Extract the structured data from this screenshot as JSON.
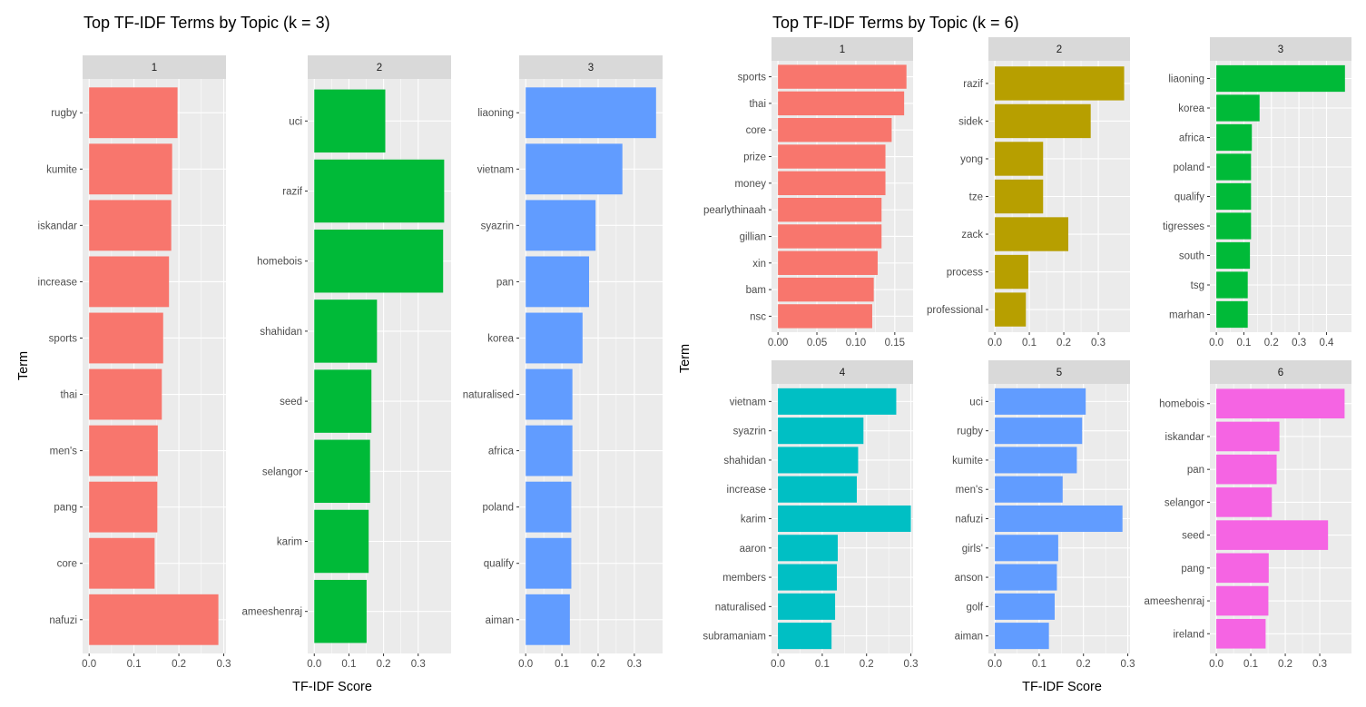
{
  "chart_data": [
    {
      "type": "bar",
      "orientation": "horizontal",
      "title": "Top TF-IDF Terms by Topic (k = 3)",
      "xlabel": "TF-IDF Score",
      "ylabel": "Term",
      "panels": [
        {
          "strip": "1",
          "color": "#F8766D",
          "xlim": [
            -0.0145,
            0.305
          ],
          "ticks": [
            0.0,
            0.1,
            0.2,
            0.3
          ],
          "tick_labels": [
            "0.0",
            "0.1",
            "0.2",
            "0.3"
          ],
          "categories": [
            "rugby",
            "kumite",
            "iskandar",
            "increase",
            "sports",
            "thai",
            "men's",
            "pang",
            "core",
            "nafuzi"
          ],
          "values": [
            0.197,
            0.185,
            0.183,
            0.178,
            0.165,
            0.162,
            0.153,
            0.152,
            0.146,
            0.288
          ]
        },
        {
          "strip": "2",
          "color": "#00BA38",
          "xlim": [
            -0.019,
            0.395
          ],
          "ticks": [
            0.0,
            0.1,
            0.2,
            0.3
          ],
          "tick_labels": [
            "0.0",
            "0.1",
            "0.2",
            "0.3"
          ],
          "categories": [
            "uci",
            "razif",
            "homebois",
            "shahidan",
            "seed",
            "selangor",
            "karim",
            "ameeshenraj"
          ],
          "values": [
            0.205,
            0.375,
            0.372,
            0.181,
            0.165,
            0.161,
            0.157,
            0.151
          ]
        },
        {
          "strip": "3",
          "color": "#619CFF",
          "xlim": [
            -0.018,
            0.378
          ],
          "ticks": [
            0.0,
            0.1,
            0.2,
            0.3
          ],
          "tick_labels": [
            "0.0",
            "0.1",
            "0.2",
            "0.3"
          ],
          "categories": [
            "liaoning",
            "vietnam",
            "syazrin",
            "pan",
            "korea",
            "naturalised",
            "africa",
            "poland",
            "qualify",
            "aiman"
          ],
          "values": [
            0.36,
            0.267,
            0.193,
            0.175,
            0.157,
            0.129,
            0.129,
            0.126,
            0.126,
            0.122
          ]
        }
      ]
    },
    {
      "type": "bar",
      "orientation": "horizontal",
      "title": "Top TF-IDF Terms by Topic (k = 6)",
      "xlabel": "TF-IDF Score",
      "ylabel": "Term",
      "panels": [
        {
          "strip": "1",
          "color": "#F8766D",
          "xlim": [
            -0.0083,
            0.1735
          ],
          "ticks": [
            0.0,
            0.05,
            0.1,
            0.15
          ],
          "tick_labels": [
            "0.00",
            "0.05",
            "0.10",
            "0.15"
          ],
          "categories": [
            "sports",
            "thai",
            "core",
            "prize",
            "money",
            "pearlythinaah",
            "gillian",
            "xin",
            "bam",
            "nsc"
          ],
          "values": [
            0.165,
            0.162,
            0.146,
            0.138,
            0.138,
            0.133,
            0.133,
            0.128,
            0.123,
            0.121
          ]
        },
        {
          "strip": "2",
          "color": "#B79F00",
          "xlim": [
            -0.0186,
            0.392
          ],
          "ticks": [
            0.0,
            0.1,
            0.2,
            0.3
          ],
          "tick_labels": [
            "0.0",
            "0.1",
            "0.2",
            "0.3"
          ],
          "categories": [
            "razif",
            "sidek",
            "yong",
            "tze",
            "zack",
            "process",
            "professional"
          ],
          "values": [
            0.375,
            0.278,
            0.14,
            0.14,
            0.213,
            0.097,
            0.09
          ]
        },
        {
          "strip": "3",
          "color": "#00BA38",
          "xlim": [
            -0.0234,
            0.4907
          ],
          "ticks": [
            0.0,
            0.1,
            0.2,
            0.3,
            0.4
          ],
          "tick_labels": [
            "0.0",
            "0.1",
            "0.2",
            "0.3",
            "0.4"
          ],
          "categories": [
            "liaoning",
            "korea",
            "africa",
            "poland",
            "qualify",
            "tigresses",
            "south",
            "tsg",
            "marhan"
          ],
          "values": [
            0.467,
            0.157,
            0.129,
            0.126,
            0.126,
            0.126,
            0.122,
            0.114,
            0.114
          ]
        },
        {
          "strip": "4",
          "color": "#00BFC4",
          "xlim": [
            -0.0145,
            0.305
          ],
          "ticks": [
            0.0,
            0.1,
            0.2,
            0.3
          ],
          "tick_labels": [
            "0.0",
            "0.1",
            "0.2",
            "0.3"
          ],
          "categories": [
            "vietnam",
            "syazrin",
            "shahidan",
            "increase",
            "karim",
            "aaron",
            "members",
            "naturalised",
            "subramaniam"
          ],
          "values": [
            0.267,
            0.193,
            0.181,
            0.178,
            0.3,
            0.135,
            0.133,
            0.129,
            0.121
          ]
        },
        {
          "strip": "5",
          "color": "#619CFF",
          "xlim": [
            -0.0145,
            0.305
          ],
          "ticks": [
            0.0,
            0.1,
            0.2,
            0.3
          ],
          "tick_labels": [
            "0.0",
            "0.1",
            "0.2",
            "0.3"
          ],
          "categories": [
            "uci",
            "rugby",
            "kumite",
            "men's",
            "nafuzi",
            "girls'",
            "anson",
            "golf",
            "aiman"
          ],
          "values": [
            0.205,
            0.197,
            0.185,
            0.153,
            0.288,
            0.143,
            0.14,
            0.135,
            0.122
          ]
        },
        {
          "strip": "6",
          "color": "#F564E3",
          "xlim": [
            -0.0186,
            0.392
          ],
          "ticks": [
            0.0,
            0.1,
            0.2,
            0.3
          ],
          "tick_labels": [
            "0.0",
            "0.1",
            "0.2",
            "0.3"
          ],
          "categories": [
            "homebois",
            "iskandar",
            "pan",
            "selangor",
            "seed",
            "pang",
            "ameeshenraj",
            "ireland"
          ],
          "values": [
            0.372,
            0.183,
            0.175,
            0.161,
            0.324,
            0.152,
            0.151,
            0.143
          ]
        }
      ]
    }
  ]
}
